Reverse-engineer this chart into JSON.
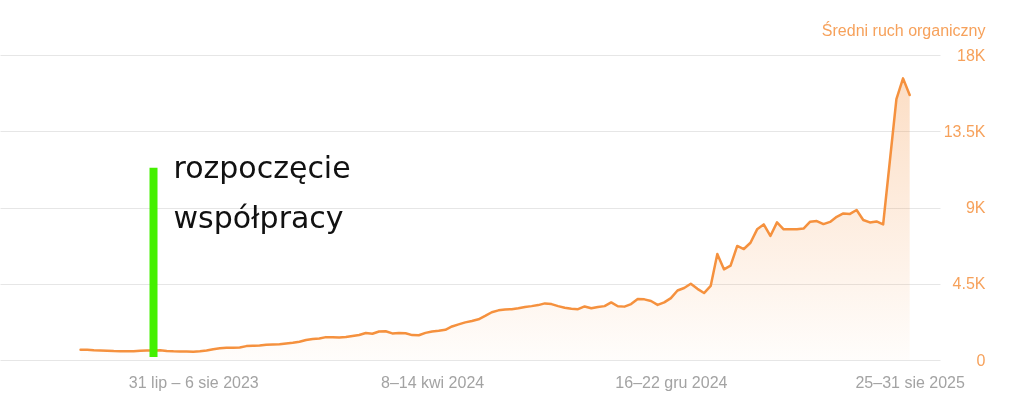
{
  "chart_data": {
    "type": "area",
    "ylabel": "Średni ruch organiczny",
    "x": [
      "2023-04-03",
      "2023-04-10",
      "2023-04-17",
      "2023-04-24",
      "2023-05-01",
      "2023-05-08",
      "2023-05-15",
      "2023-05-22",
      "2023-05-29",
      "2023-06-05",
      "2023-06-12",
      "2023-06-19",
      "2023-06-26",
      "2023-07-03",
      "2023-07-10",
      "2023-07-17",
      "2023-07-24",
      "2023-07-31",
      "2023-08-07",
      "2023-08-14",
      "2023-08-21",
      "2023-08-28",
      "2023-09-04",
      "2023-09-11",
      "2023-09-18",
      "2023-09-25",
      "2023-10-02",
      "2023-10-09",
      "2023-10-16",
      "2023-10-23",
      "2023-10-30",
      "2023-11-06",
      "2023-11-13",
      "2023-11-20",
      "2023-11-27",
      "2023-12-04",
      "2023-12-11",
      "2023-12-18",
      "2023-12-25",
      "2024-01-01",
      "2024-01-08",
      "2024-01-15",
      "2024-01-22",
      "2024-01-29",
      "2024-02-05",
      "2024-02-12",
      "2024-02-19",
      "2024-02-26",
      "2024-03-04",
      "2024-03-11",
      "2024-03-18",
      "2024-03-25",
      "2024-04-01",
      "2024-04-08",
      "2024-04-15",
      "2024-04-22",
      "2024-04-29",
      "2024-05-06",
      "2024-05-13",
      "2024-05-20",
      "2024-05-27",
      "2024-06-03",
      "2024-06-10",
      "2024-06-17",
      "2024-06-24",
      "2024-07-01",
      "2024-07-08",
      "2024-07-15",
      "2024-07-22",
      "2024-07-29",
      "2024-08-05",
      "2024-08-12",
      "2024-08-19",
      "2024-08-26",
      "2024-09-02",
      "2024-09-09",
      "2024-09-16",
      "2024-09-23",
      "2024-09-30",
      "2024-10-07",
      "2024-10-14",
      "2024-10-21",
      "2024-10-28",
      "2024-11-04",
      "2024-11-11",
      "2024-11-18",
      "2024-11-25",
      "2024-12-02",
      "2024-12-09",
      "2024-12-16",
      "2024-12-23",
      "2024-12-30",
      "2025-01-06",
      "2025-01-13",
      "2025-01-20",
      "2025-01-27",
      "2025-02-03",
      "2025-02-10",
      "2025-02-17",
      "2025-02-24",
      "2025-03-03",
      "2025-03-10",
      "2025-03-17",
      "2025-03-24",
      "2025-03-31",
      "2025-04-07",
      "2025-04-14",
      "2025-04-21",
      "2025-04-28",
      "2025-05-05",
      "2025-05-12",
      "2025-05-19",
      "2025-05-26",
      "2025-06-02",
      "2025-06-09",
      "2025-06-16",
      "2025-06-23",
      "2025-06-30",
      "2025-07-07",
      "2025-07-14",
      "2025-07-21",
      "2025-07-28",
      "2025-08-04",
      "2025-08-11",
      "2025-08-18",
      "2025-08-25"
    ],
    "series": [
      {
        "color": "#f5913e",
        "values": [
          600,
          600,
          570,
          560,
          550,
          530,
          520,
          510,
          520,
          550,
          560,
          560,
          570,
          530,
          510,
          500,
          500,
          490,
          510,
          560,
          640,
          690,
          720,
          720,
          740,
          820,
          840,
          850,
          900,
          920,
          930,
          980,
          1020,
          1080,
          1180,
          1240,
          1270,
          1350,
          1340,
          1330,
          1360,
          1420,
          1480,
          1590,
          1550,
          1680,
          1700,
          1570,
          1600,
          1580,
          1470,
          1460,
          1600,
          1680,
          1720,
          1780,
          1980,
          2100,
          2220,
          2300,
          2400,
          2600,
          2820,
          2930,
          2980,
          3000,
          3060,
          3130,
          3180,
          3240,
          3340,
          3300,
          3180,
          3080,
          3020,
          3000,
          3160,
          3050,
          3130,
          3180,
          3400,
          3170,
          3150,
          3300,
          3600,
          3580,
          3480,
          3250,
          3400,
          3650,
          4100,
          4250,
          4500,
          4200,
          3950,
          4370,
          6250,
          5350,
          5570,
          6730,
          6550,
          6920,
          7710,
          8000,
          7320,
          8120,
          7710,
          7720,
          7720,
          7760,
          8160,
          8200,
          8020,
          8150,
          8450,
          8650,
          8620,
          8850,
          8260,
          8120,
          8180,
          8000,
          11700,
          15400,
          16620,
          15640
        ]
      }
    ],
    "xlim": [
      "2023-01-08",
      "2025-09-26"
    ],
    "xticks": [
      {
        "value": "2023-07-31",
        "label": "31 lip – 6 sie 2023"
      },
      {
        "value": "2024-04-08",
        "label": "8–14 kwi 2024"
      },
      {
        "value": "2024-12-16",
        "label": "16–22 gru 2024"
      },
      {
        "value": "2025-08-25",
        "label": "25–31 sie 2025"
      }
    ],
    "ylim": [
      0,
      18000
    ],
    "yticks": [
      0,
      {
        "value": 4500,
        "label": "4.5K"
      },
      {
        "value": 9000,
        "label": "9K"
      },
      {
        "value": 13500,
        "label": "13.5K"
      },
      {
        "value": 18000,
        "label": "18K"
      }
    ],
    "grid": "y",
    "ref_lines": [
      {
        "axis": "x",
        "value": "2023-06-19",
        "label": "rozpoczęcie współpracy",
        "color": "#44f000"
      }
    ]
  }
}
